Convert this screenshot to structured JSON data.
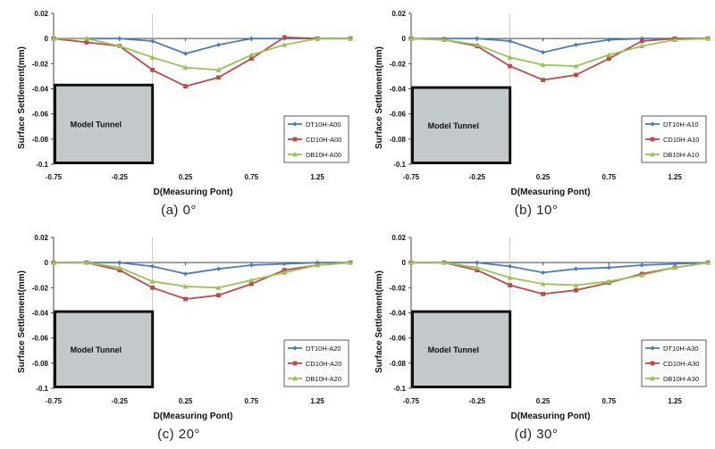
{
  "colors": {
    "dt": "#4a7ebb",
    "cd": "#be4b48",
    "db": "#98c455",
    "tunnel_fill": "#c3c9cb",
    "tunnel_stroke": "#111111",
    "axis": "#444444"
  },
  "chart_data": [
    {
      "type": "line",
      "caption": "(a) 0°",
      "xlabel": "D(Measuring Pont)",
      "ylabel": "Surface Settlement(mm)",
      "xlim": [
        -0.75,
        1.5
      ],
      "ylim": [
        -0.1,
        0.02
      ],
      "xticks": [
        "-0.75",
        "-0.25",
        "0.25",
        "0.75",
        "1.25"
      ],
      "yticks": [
        "0.02",
        "0",
        "-0.02",
        "-0.04",
        "-0.06",
        "-0.08",
        "-0.1"
      ],
      "tunnel_label": "Model Tunnel",
      "tunnel": {
        "x": [
          -0.75,
          0.0
        ],
        "y": [
          -0.1,
          -0.037
        ]
      },
      "x": [
        -0.75,
        -0.5,
        -0.25,
        0.0,
        0.25,
        0.5,
        0.75,
        1.0,
        1.25,
        1.5
      ],
      "series": [
        {
          "name": "DT10H-A00",
          "values": [
            0,
            0,
            0,
            -0.002,
            -0.012,
            -0.005,
            0,
            0,
            0,
            0
          ]
        },
        {
          "name": "CD10H-A00",
          "values": [
            0,
            -0.003,
            -0.006,
            -0.025,
            -0.038,
            -0.031,
            -0.016,
            0.001,
            0,
            0
          ]
        },
        {
          "name": "DB10H-A00",
          "values": [
            0,
            0,
            -0.006,
            -0.015,
            -0.023,
            -0.025,
            -0.013,
            -0.005,
            0,
            0
          ]
        }
      ]
    },
    {
      "type": "line",
      "caption": "(b) 10°",
      "xlabel": "D(Measuring Pont)",
      "ylabel": "Surface Settlement(mm)",
      "xlim": [
        -0.75,
        1.5
      ],
      "ylim": [
        -0.1,
        0.02
      ],
      "xticks": [
        "-0.75",
        "-0.25",
        "0.25",
        "0.75",
        "1.25"
      ],
      "yticks": [
        "0.02",
        "0",
        "-0.02",
        "-0.04",
        "-0.06",
        "-0.08",
        "-0.1"
      ],
      "tunnel_label": "Model Tunnel",
      "tunnel": {
        "x": [
          -0.75,
          0.0
        ],
        "y": [
          -0.1,
          -0.039
        ]
      },
      "x": [
        -0.75,
        -0.5,
        -0.25,
        0.0,
        0.25,
        0.5,
        0.75,
        1.0,
        1.25,
        1.5
      ],
      "series": [
        {
          "name": "DT10H-A10",
          "values": [
            0,
            0,
            0,
            -0.002,
            -0.011,
            -0.005,
            -0.001,
            0,
            0,
            0
          ]
        },
        {
          "name": "CD10H-A10",
          "values": [
            0,
            -0.001,
            -0.006,
            -0.022,
            -0.033,
            -0.029,
            -0.016,
            -0.002,
            0,
            0
          ]
        },
        {
          "name": "DB10H-A10",
          "values": [
            0,
            -0.001,
            -0.005,
            -0.015,
            -0.021,
            -0.022,
            -0.013,
            -0.006,
            -0.001,
            0
          ]
        }
      ]
    },
    {
      "type": "line",
      "caption": "(c) 20°",
      "xlabel": "D(Measuring Pont)",
      "ylabel": "Surface Settlement(mm)",
      "xlim": [
        -0.75,
        1.5
      ],
      "ylim": [
        -0.1,
        0.02
      ],
      "xticks": [
        "-0.75",
        "-0.25",
        "0.25",
        "0.75",
        "1.25"
      ],
      "yticks": [
        "0.02",
        "0",
        "-0.02",
        "-0.04",
        "-0.06",
        "-0.08",
        "-0.1"
      ],
      "tunnel_label": "Model Tunnel",
      "tunnel": {
        "x": [
          -0.75,
          0.0
        ],
        "y": [
          -0.1,
          -0.039
        ]
      },
      "x": [
        -0.75,
        -0.5,
        -0.25,
        0.0,
        0.25,
        0.5,
        0.75,
        1.0,
        1.25,
        1.5
      ],
      "series": [
        {
          "name": "DT10H-A20",
          "values": [
            0,
            0,
            0,
            -0.003,
            -0.009,
            -0.005,
            -0.002,
            -0.001,
            0,
            0
          ]
        },
        {
          "name": "CD10H-A20",
          "values": [
            0,
            0,
            -0.006,
            -0.02,
            -0.029,
            -0.026,
            -0.017,
            -0.006,
            -0.002,
            0
          ]
        },
        {
          "name": "DB10H-A20",
          "values": [
            0,
            0,
            -0.004,
            -0.015,
            -0.019,
            -0.02,
            -0.014,
            -0.008,
            -0.002,
            0
          ]
        }
      ]
    },
    {
      "type": "line",
      "caption": "(d) 30°",
      "xlabel": "D(Measuring Pont)",
      "ylabel": "Surface Settlement(mm)",
      "xlim": [
        -0.75,
        1.5
      ],
      "ylim": [
        -0.1,
        0.02
      ],
      "xticks": [
        "-0.75",
        "-0.25",
        "0.25",
        "0.75",
        "1.25"
      ],
      "yticks": [
        "0.02",
        "0",
        "-0.02",
        "-0.04",
        "-0.06",
        "-0.08",
        "-0.1"
      ],
      "tunnel_label": "Model Tunnel",
      "tunnel": {
        "x": [
          -0.75,
          0.0
        ],
        "y": [
          -0.1,
          -0.039
        ]
      },
      "x": [
        -0.75,
        -0.5,
        -0.25,
        0.0,
        0.25,
        0.5,
        0.75,
        1.0,
        1.25,
        1.5
      ],
      "series": [
        {
          "name": "DT10H-A30",
          "values": [
            0,
            0,
            0,
            -0.003,
            -0.008,
            -0.005,
            -0.004,
            -0.002,
            -0.001,
            0
          ]
        },
        {
          "name": "CD10H-A30",
          "values": [
            0,
            0,
            -0.006,
            -0.018,
            -0.025,
            -0.022,
            -0.016,
            -0.009,
            -0.004,
            0
          ]
        },
        {
          "name": "DB10H-A30",
          "values": [
            0,
            0,
            -0.004,
            -0.012,
            -0.017,
            -0.018,
            -0.015,
            -0.01,
            -0.004,
            0
          ]
        }
      ]
    }
  ]
}
